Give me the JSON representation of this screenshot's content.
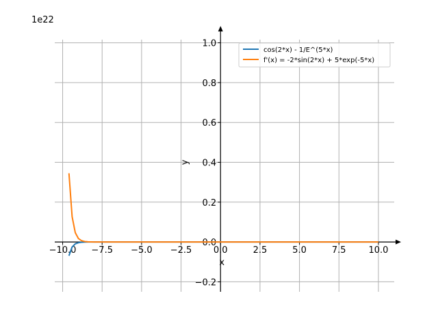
{
  "chart_data": {
    "type": "line",
    "title": "",
    "xlabel": "x",
    "ylabel": "y",
    "offset_label": "1e22",
    "xlim": [
      -10.5,
      11
    ],
    "ylim": [
      -0.25,
      1.05
    ],
    "grid": true,
    "legend_position": "top-right",
    "x_ticks": [
      -10.0,
      -7.5,
      -5.0,
      -2.5,
      0.0,
      2.5,
      5.0,
      7.5,
      10.0
    ],
    "x_tick_labels": [
      "−10.0",
      "−7.5",
      "−5.0",
      "−2.5",
      "0.0",
      "2.5",
      "5.0",
      "7.5",
      "10.0"
    ],
    "y_ticks": [
      -0.2,
      0.0,
      0.2,
      0.4,
      0.6,
      0.8,
      1.0
    ],
    "y_tick_labels": [
      "−0.2",
      "0.0",
      "0.2",
      "0.4",
      "0.6",
      "0.8",
      "1.0"
    ],
    "series": [
      {
        "name": "cos(2*x) - 1/E^(5*x)",
        "color": "#1f77b4",
        "x": [
          -9.6,
          -9.4,
          -9.2,
          -9.0,
          -8.8,
          -8.6,
          -8.4,
          -8.0,
          -7.0,
          0,
          10.0
        ],
        "y": [
          -0.069,
          -0.025,
          -0.0093,
          -0.0035,
          -0.0013,
          -0.0005,
          -0.0002,
          0,
          0,
          0,
          0
        ]
      },
      {
        "name": "f'(x) = -2*sin(2*x) + 5*exp(-5*x)",
        "color": "#ff7f0e",
        "x": [
          -9.6,
          -9.4,
          -9.2,
          -9.0,
          -8.8,
          -8.6,
          -8.4,
          -8.0,
          -7.0,
          0,
          10.0
        ],
        "y": [
          0.345,
          0.127,
          0.0467,
          0.0172,
          0.0063,
          0.0023,
          0.0009,
          0,
          0,
          0,
          0
        ]
      }
    ]
  }
}
